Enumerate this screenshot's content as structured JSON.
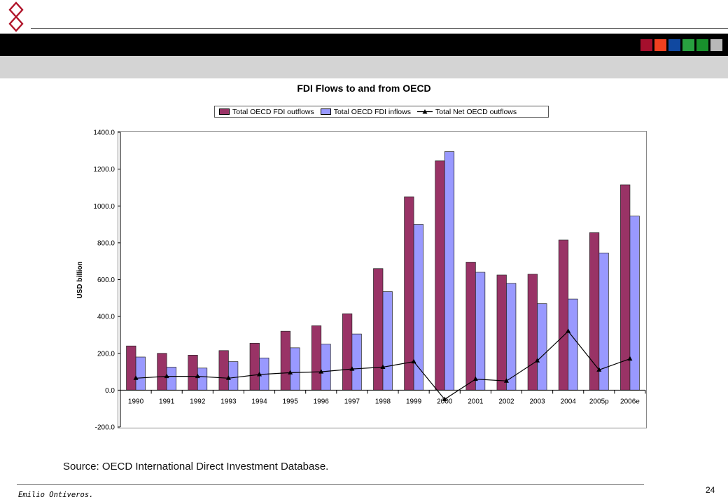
{
  "colors": {
    "swatches": [
      "#a50f2d",
      "#f04020",
      "#1048a0",
      "#28a040",
      "#18902c",
      "#b8b8b8"
    ],
    "outflows": "#993366",
    "inflows": "#9999ff",
    "net": "#000000",
    "logo": "#b0142a"
  },
  "icons": {
    "logo": "diamond-logo-icon"
  },
  "chart_data": {
    "type": "bar",
    "title": "FDI Flows to and from OECD",
    "ylabel": "USD billion",
    "xlabel": "",
    "ylim": [
      -200,
      1400
    ],
    "yticks": [
      -200,
      0,
      200,
      400,
      600,
      800,
      1000,
      1200,
      1400
    ],
    "ytick_labels": [
      "-200.0",
      "0.0",
      "200.0",
      "400.0",
      "600.0",
      "800.0",
      "1000.0",
      "1200.0",
      "1400.0"
    ],
    "legend_position": "top",
    "grid": false,
    "categories": [
      "1990",
      "1991",
      "1992",
      "1993",
      "1994",
      "1995",
      "1996",
      "1997",
      "1998",
      "1999",
      "2000",
      "2001",
      "2002",
      "2003",
      "2004",
      "2005p",
      "2006e"
    ],
    "series": [
      {
        "name": "Total OECD FDI outflows",
        "type": "bar",
        "values": [
          240,
          200,
          190,
          215,
          255,
          320,
          350,
          415,
          660,
          1050,
          1245,
          695,
          625,
          630,
          815,
          855,
          1115
        ]
      },
      {
        "name": "Total OECD FDI inflows",
        "type": "bar",
        "values": [
          180,
          125,
          120,
          155,
          175,
          230,
          250,
          305,
          535,
          900,
          1295,
          640,
          580,
          470,
          495,
          745,
          945
        ]
      },
      {
        "name": "Total Net OECD outflows",
        "type": "line",
        "values": [
          65,
          75,
          75,
          65,
          85,
          95,
          100,
          115,
          125,
          155,
          -50,
          60,
          50,
          160,
          320,
          110,
          170
        ]
      }
    ]
  },
  "footer": {
    "source": "Source: OECD International Direct Investment Database.",
    "author": "Emilio Ontiveros.",
    "page_number": "24"
  }
}
